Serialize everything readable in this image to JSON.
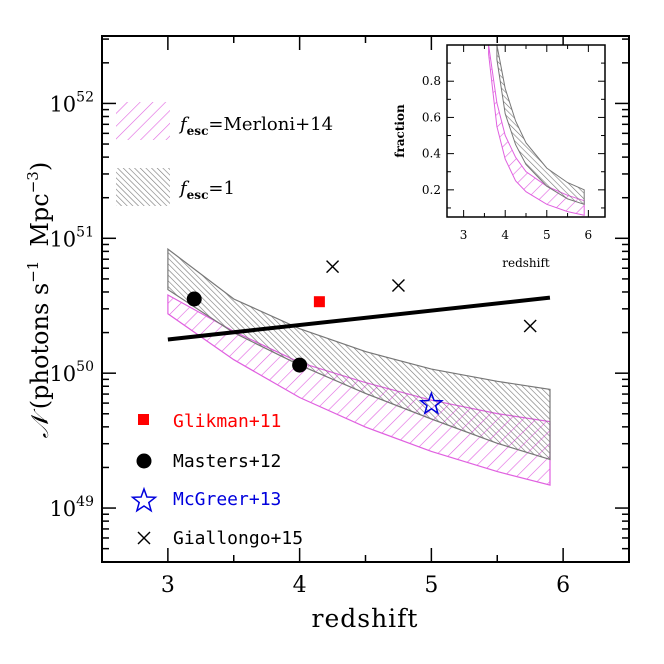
{
  "chart_data": [
    {
      "type": "line",
      "xlabel": "redshift",
      "ylabel": "(photons s",
      "ylabel_symbol": "𝒩",
      "ylabel_sup1": "−1",
      "ylabel_mid": "Mpc",
      "ylabel_sup2": "−3",
      "ylabel_close": ")",
      "xlim": [
        2.5,
        6.5
      ],
      "ylim_log10": [
        48.6,
        52.5
      ],
      "y_scale": "log",
      "x_ticks": [
        "3",
        "4",
        "5",
        "6"
      ],
      "y_ticks": [
        {
          "base": "10",
          "exp": "49",
          "log": 49
        },
        {
          "base": "10",
          "exp": "50",
          "log": 50
        },
        {
          "base": "10",
          "exp": "51",
          "log": 51
        },
        {
          "base": "10",
          "exp": "52",
          "log": 52
        }
      ],
      "bands": [
        {
          "name": "Merloni+14",
          "label_prefix": "f",
          "label_sub": "esc",
          "label_suffix": "=Merloni+14",
          "color": "#e060e0",
          "x": [
            3.0,
            3.5,
            4.0,
            4.5,
            5.0,
            5.5,
            5.9
          ],
          "upper_log10": [
            50.58,
            50.31,
            50.08,
            49.93,
            49.8,
            49.7,
            49.64
          ],
          "lower_log10": [
            50.44,
            50.1,
            49.82,
            49.6,
            49.42,
            49.27,
            49.17
          ]
        },
        {
          "name": "f_esc=1",
          "label_prefix": "f",
          "label_sub": "esc",
          "label_suffix": "=1",
          "color": "#777777",
          "x": [
            3.0,
            3.5,
            4.0,
            4.5,
            5.0,
            5.5,
            5.9
          ],
          "upper_log10": [
            50.92,
            50.55,
            50.33,
            50.16,
            50.03,
            49.94,
            49.88
          ],
          "lower_log10": [
            50.62,
            50.3,
            50.06,
            49.85,
            49.66,
            49.48,
            49.36
          ]
        }
      ],
      "line": {
        "x": [
          3.0,
          5.9
        ],
        "y_log10": [
          50.25,
          50.56
        ],
        "color": "#000000"
      },
      "series": [
        {
          "name": "Glikman+11",
          "marker": "square",
          "color": "#ff0000",
          "x": [
            4.15
          ],
          "y_log10": [
            50.53
          ]
        },
        {
          "name": "Masters+12",
          "marker": "circle",
          "color": "#000000",
          "x": [
            3.2,
            4.0
          ],
          "y_log10": [
            50.55,
            50.06
          ]
        },
        {
          "name": "McGreer+13",
          "marker": "star",
          "color": "#0000dd",
          "x": [
            5.0
          ],
          "y_log10": [
            49.77
          ]
        },
        {
          "name": "Giallongo+15",
          "marker": "cross",
          "color": "#000000",
          "x": [
            4.25,
            4.75,
            5.75
          ],
          "y_log10": [
            50.79,
            50.65,
            50.35
          ]
        }
      ]
    },
    {
      "type": "line",
      "xlabel": "redshift",
      "ylabel": "fraction",
      "xlim": [
        2.6,
        6.4
      ],
      "ylim": [
        0.05,
        1.0
      ],
      "x_ticks": [
        "3",
        "4",
        "5",
        "6"
      ],
      "y_ticks": [
        "0.2",
        "0.4",
        "0.6",
        "0.8"
      ],
      "bands": [
        {
          "name": "Merloni+14",
          "color": "#e060e0",
          "x": [
            3.6,
            3.8,
            4.0,
            4.25,
            4.5,
            5.0,
            5.5,
            5.9
          ],
          "upper": [
            1.0,
            0.68,
            0.5,
            0.38,
            0.3,
            0.22,
            0.17,
            0.14
          ],
          "lower": [
            0.95,
            0.55,
            0.37,
            0.25,
            0.19,
            0.12,
            0.08,
            0.06
          ]
        },
        {
          "name": "f_esc=1",
          "color": "#777777",
          "x": [
            3.8,
            4.0,
            4.25,
            4.5,
            5.0,
            5.5,
            5.9
          ],
          "upper": [
            1.0,
            0.76,
            0.58,
            0.46,
            0.32,
            0.24,
            0.2
          ],
          "lower": [
            0.92,
            0.62,
            0.45,
            0.34,
            0.22,
            0.15,
            0.12
          ]
        }
      ]
    }
  ]
}
